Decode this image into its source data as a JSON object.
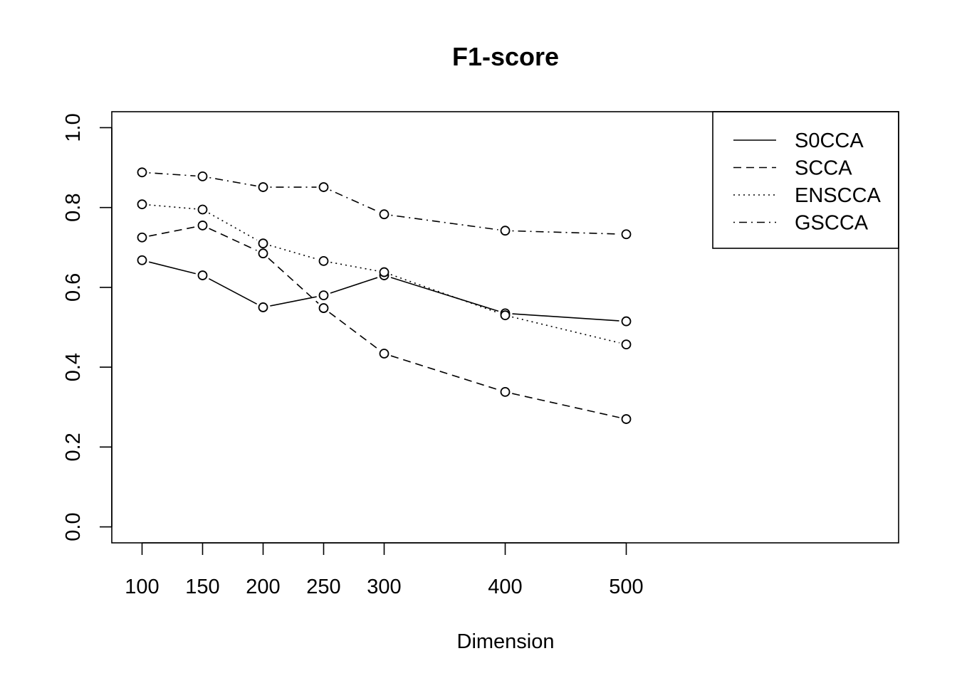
{
  "chart_data": {
    "type": "line",
    "title": "F1-score",
    "xlabel": "Dimension",
    "ylabel": "",
    "x": [
      100,
      150,
      200,
      250,
      300,
      400,
      500
    ],
    "xlim": [
      75,
      725
    ],
    "ylim": [
      -0.04,
      1.04
    ],
    "x_ticks": [
      100,
      150,
      200,
      250,
      300,
      400,
      500
    ],
    "y_ticks": [
      "0.0",
      "0.2",
      "0.4",
      "0.6",
      "0.8",
      "1.0"
    ],
    "grid": false,
    "legend_position": "top-right",
    "series": [
      {
        "name": "S0CCA",
        "dash": "solid",
        "values": [
          0.668,
          0.63,
          0.55,
          0.58,
          0.63,
          0.535,
          0.515
        ]
      },
      {
        "name": "SCCA",
        "dash": "dashed",
        "values": [
          0.725,
          0.755,
          0.685,
          0.548,
          0.434,
          0.338,
          0.27
        ]
      },
      {
        "name": "ENSCCA",
        "dash": "dotted",
        "values": [
          0.808,
          0.795,
          0.71,
          0.666,
          0.638,
          0.53,
          0.457
        ]
      },
      {
        "name": "GSCCA",
        "dash": "dotdash",
        "values": [
          0.888,
          0.878,
          0.851,
          0.851,
          0.783,
          0.742,
          0.733
        ]
      }
    ]
  }
}
